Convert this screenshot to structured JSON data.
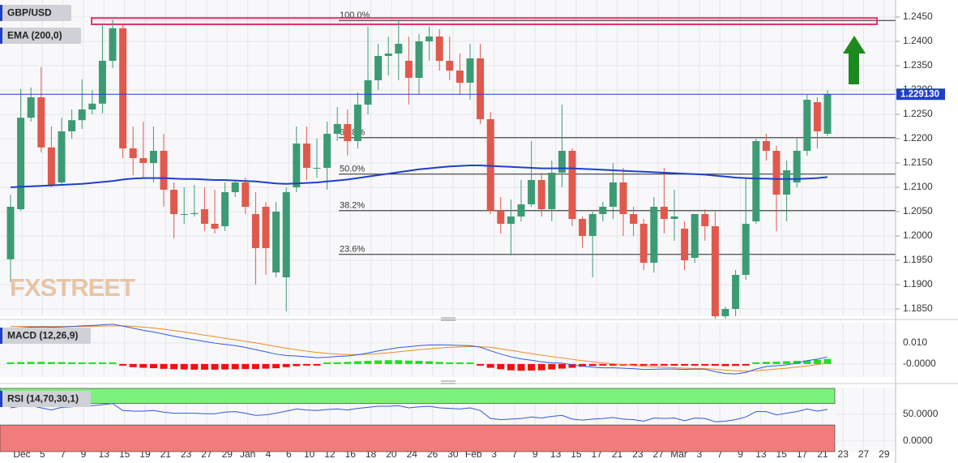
{
  "chart_data": {
    "type": "candlestick",
    "symbol": "GBP/USD",
    "watermark": "FXSTREET",
    "candle_colors": {
      "up": "#3c9b73",
      "down": "#e0594c"
    },
    "candles": {
      "open": [
        1.1952,
        1.2055,
        1.2243,
        1.2285,
        1.2182,
        1.211,
        1.2215,
        1.2238,
        1.226,
        1.2272,
        1.236,
        1.2427,
        1.218,
        1.216,
        1.215,
        1.2175,
        1.2095,
        1.2045,
        1.2045,
        1.2055,
        1.2025,
        1.202,
        1.209,
        1.211,
        1.2045,
        1.206,
        1.1925,
        1.1915,
        1.21,
        1.219,
        1.214,
        1.214,
        1.221,
        1.223,
        1.2195,
        1.227,
        1.232,
        1.237,
        1.2375,
        1.236,
        1.2325,
        1.24,
        1.241,
        1.236,
        1.234,
        1.2315,
        1.2365,
        1.224,
        1.2052,
        1.2025,
        1.204,
        1.2065,
        1.2115,
        1.2055,
        1.213,
        1.2175,
        1.2035,
        1.2,
        1.2045,
        1.206,
        1.211,
        1.2045,
        1.2025,
        1.1945,
        1.206,
        1.2035,
        1.2015,
        1.1955,
        1.2045,
        1.202,
        1.1835,
        1.185,
        1.192,
        1.203,
        1.2195,
        1.2175,
        1.2085,
        1.211,
        1.2175,
        1.2275,
        1.221
      ],
      "high": [
        1.2085,
        1.2302,
        1.2305,
        1.2347,
        1.2225,
        1.2243,
        1.226,
        1.2322,
        1.23,
        1.2435,
        1.2445,
        1.2435,
        1.2225,
        1.2235,
        1.2225,
        1.221,
        1.211,
        1.21,
        1.2105,
        1.21,
        1.2095,
        1.211,
        1.2115,
        1.212,
        1.209,
        1.207,
        1.207,
        1.21,
        1.2225,
        1.2225,
        1.22,
        1.2235,
        1.2265,
        1.226,
        1.2295,
        1.243,
        1.2395,
        1.241,
        1.2445,
        1.241,
        1.2415,
        1.243,
        1.2425,
        1.241,
        1.2375,
        1.2395,
        1.2395,
        1.2255,
        1.208,
        1.2075,
        1.2115,
        1.2195,
        1.213,
        1.2155,
        1.227,
        1.218,
        1.204,
        1.205,
        1.207,
        1.215,
        1.214,
        1.206,
        1.2035,
        1.208,
        1.214,
        1.2095,
        1.203,
        1.2045,
        1.2055,
        1.205,
        1.1855,
        1.193,
        1.212,
        1.22,
        1.221,
        1.2185,
        1.2155,
        1.22,
        1.229,
        1.2285,
        1.23
      ],
      "low": [
        1.1905,
        1.2052,
        1.2235,
        1.2172,
        1.21,
        1.2105,
        1.22,
        1.222,
        1.225,
        1.2252,
        1.2345,
        1.216,
        1.2125,
        1.212,
        1.211,
        1.206,
        1.1995,
        1.2025,
        1.204,
        1.201,
        1.2005,
        1.201,
        1.208,
        1.2045,
        1.19,
        1.192,
        1.1915,
        1.1845,
        1.209,
        1.2115,
        1.212,
        1.2095,
        1.2195,
        1.2165,
        1.218,
        1.225,
        1.23,
        1.233,
        1.232,
        1.227,
        1.229,
        1.236,
        1.234,
        1.232,
        1.229,
        1.228,
        1.223,
        1.2045,
        1.2005,
        1.196,
        1.203,
        1.206,
        1.204,
        1.203,
        1.21,
        1.202,
        1.1975,
        1.1915,
        1.203,
        1.2035,
        1.2,
        1.2,
        1.193,
        1.1925,
        1.2005,
        1.199,
        1.193,
        1.1945,
        1.199,
        1.183,
        1.183,
        1.1835,
        1.191,
        1.2025,
        1.2155,
        1.201,
        1.203,
        1.21,
        1.2165,
        1.218,
        1.2205
      ],
      "close": [
        1.206,
        1.2243,
        1.2285,
        1.2182,
        1.2105,
        1.2215,
        1.2238,
        1.226,
        1.2272,
        1.236,
        1.2427,
        1.218,
        1.216,
        1.215,
        1.2175,
        1.2095,
        1.2045,
        1.2045,
        1.2047,
        1.2025,
        1.2015,
        1.209,
        1.211,
        1.206,
        1.1975,
        1.1975,
        1.205,
        1.209,
        1.219,
        1.214,
        1.214,
        1.221,
        1.223,
        1.2195,
        1.227,
        1.232,
        1.237,
        1.2375,
        1.2395,
        1.2325,
        1.24,
        1.241,
        1.236,
        1.234,
        1.2315,
        1.2365,
        1.224,
        1.2052,
        1.2025,
        1.204,
        1.2065,
        1.2115,
        1.2055,
        1.213,
        1.2175,
        1.2035,
        1.2,
        1.2045,
        1.206,
        1.211,
        1.2045,
        1.2025,
        1.1945,
        1.206,
        1.2035,
        1.204,
        1.195,
        1.2045,
        1.202,
        1.1835,
        1.185,
        1.192,
        1.2025,
        1.2195,
        1.2175,
        1.2085,
        1.2135,
        1.2175,
        1.228,
        1.2215,
        1.2291
      ]
    },
    "ema": {
      "name": "EMA (200,0)",
      "color": "#1f3fc7",
      "values": [
        1.21,
        1.2101,
        1.2102,
        1.2103,
        1.2104,
        1.2105,
        1.2106,
        1.2107,
        1.2109,
        1.2111,
        1.2113,
        1.2116,
        1.2118,
        1.2119,
        1.2119,
        1.2119,
        1.2118,
        1.2117,
        1.2117,
        1.2116,
        1.2115,
        1.2115,
        1.2114,
        1.2113,
        1.2112,
        1.211,
        1.2108,
        1.2107,
        1.2108,
        1.2109,
        1.211,
        1.2112,
        1.2114,
        1.2116,
        1.2119,
        1.2122,
        1.2125,
        1.2128,
        1.2131,
        1.2134,
        1.2137,
        1.2139,
        1.2141,
        1.2143,
        1.2144,
        1.2145,
        1.2145,
        1.2144,
        1.2143,
        1.2142,
        1.2141,
        1.214,
        1.2139,
        1.2139,
        1.2139,
        1.2139,
        1.2138,
        1.2137,
        1.2136,
        1.2135,
        1.2134,
        1.2133,
        1.2132,
        1.2131,
        1.213,
        1.2129,
        1.2128,
        1.2127,
        1.2126,
        1.2124,
        1.2122,
        1.212,
        1.2119,
        1.2118,
        1.2118,
        1.2117,
        1.2117,
        1.2117,
        1.2118,
        1.2119,
        1.2121
      ]
    },
    "ylim": [
      1.1835,
      1.2485
    ],
    "yticks": [
      {
        "value": 1.245,
        "label": "1.2450"
      },
      {
        "value": 1.24,
        "label": "1.2400"
      },
      {
        "value": 1.235,
        "label": "1.2350"
      },
      {
        "value": 1.23,
        "label": "1.2300"
      },
      {
        "value": 1.225,
        "label": "1.2250"
      },
      {
        "value": 1.22,
        "label": "1.2200"
      },
      {
        "value": 1.215,
        "label": "1.2150"
      },
      {
        "value": 1.21,
        "label": "1.2100"
      },
      {
        "value": 1.205,
        "label": "1.2050"
      },
      {
        "value": 1.2,
        "label": "1.2000"
      },
      {
        "value": 1.195,
        "label": "1.1950"
      },
      {
        "value": 1.19,
        "label": "1.1900"
      },
      {
        "value": 1.185,
        "label": "1.1850"
      }
    ],
    "grid": true,
    "last_price": {
      "value": 1.22913,
      "label": "1.229130",
      "color": "#1f3fc7"
    },
    "fib_levels": [
      {
        "label": "100.0%",
        "price": 1.2443
      },
      {
        "label": "61.8%",
        "price": 1.2202
      },
      {
        "label": "50.0%",
        "price": 1.2127
      },
      {
        "label": "38.2%",
        "price": 1.2052
      },
      {
        "label": "23.6%",
        "price": 1.1962
      }
    ],
    "resistance_zone": {
      "low": 1.2435,
      "high": 1.2448,
      "color": "#e8336b"
    },
    "x_labels": [
      "Dec",
      "5",
      "7",
      "9",
      "13",
      "15",
      "19",
      "21",
      "23",
      "27",
      "29",
      "Jan",
      "4",
      "6",
      "10",
      "12",
      "16",
      "18",
      "20",
      "24",
      "26",
      "30",
      "Feb",
      "3",
      "7",
      "9",
      "13",
      "15",
      "17",
      "21",
      "23",
      "27",
      "Mar",
      "3",
      "7",
      "9",
      "13",
      "15",
      "17",
      "21",
      "23",
      "27",
      "29"
    ],
    "macd": {
      "title": "MACD (12,26,9)",
      "ylim": [
        -0.0062,
        0.0196
      ],
      "yticks": [
        {
          "value": 0.01,
          "label": "0.010"
        },
        {
          "value": 0,
          "label": "-0.0000"
        }
      ],
      "macd_color": "#2d5be3",
      "signal_color": "#f08a24",
      "up_color": "#22dd22",
      "down_color": "#ee1111",
      "macd": [
        0.017,
        0.0172,
        0.0175,
        0.0176,
        0.0175,
        0.0176,
        0.0178,
        0.0181,
        0.0183,
        0.0186,
        0.0189,
        0.018,
        0.017,
        0.016,
        0.0152,
        0.0142,
        0.0132,
        0.0123,
        0.0115,
        0.0107,
        0.0099,
        0.0093,
        0.0087,
        0.0079,
        0.0068,
        0.0058,
        0.0047,
        0.004,
        0.0038,
        0.0034,
        0.003,
        0.0032,
        0.0036,
        0.0038,
        0.0044,
        0.0052,
        0.0062,
        0.007,
        0.0078,
        0.0082,
        0.0087,
        0.009,
        0.0091,
        0.009,
        0.0088,
        0.0087,
        0.008,
        0.0063,
        0.0047,
        0.0034,
        0.0024,
        0.0018,
        0.001,
        0.0006,
        0.0004,
        -0.0004,
        -0.001,
        -0.0015,
        -0.0018,
        -0.0018,
        -0.002,
        -0.0022,
        -0.0026,
        -0.0025,
        -0.0024,
        -0.0024,
        -0.0026,
        -0.0024,
        -0.0025,
        -0.0036,
        -0.0045,
        -0.0047,
        -0.004,
        -0.0024,
        -0.0012,
        -0.0008,
        -0.0004,
        0.0004,
        0.0016,
        0.0023,
        0.0034
      ],
      "signal": [
        0.0178,
        0.0178,
        0.0178,
        0.0178,
        0.0178,
        0.0178,
        0.0178,
        0.0178,
        0.0179,
        0.018,
        0.0181,
        0.0181,
        0.0179,
        0.0175,
        0.0171,
        0.0165,
        0.0159,
        0.0152,
        0.0145,
        0.0137,
        0.013,
        0.0122,
        0.0115,
        0.0108,
        0.01,
        0.0092,
        0.0083,
        0.0075,
        0.0068,
        0.0061,
        0.0055,
        0.005,
        0.0047,
        0.0045,
        0.0045,
        0.0046,
        0.0049,
        0.0053,
        0.0058,
        0.0063,
        0.0068,
        0.0072,
        0.0076,
        0.0079,
        0.0081,
        0.0083,
        0.0082,
        0.0079,
        0.0072,
        0.0065,
        0.0057,
        0.0049,
        0.0042,
        0.0035,
        0.0029,
        0.0022,
        0.0016,
        0.001,
        0.0005,
        0.0001,
        -0.0003,
        -0.0007,
        -0.0011,
        -0.0014,
        -0.0016,
        -0.0018,
        -0.002,
        -0.0021,
        -0.0022,
        -0.0025,
        -0.0029,
        -0.0032,
        -0.0034,
        -0.0032,
        -0.0028,
        -0.0024,
        -0.002,
        -0.0015,
        -0.0009,
        -0.0003,
        0.0004
      ],
      "histogram": [
        0.0008,
        0.0009,
        0.001,
        0.001,
        0.0009,
        0.0009,
        0.0008,
        0.0007,
        0.0006,
        0.0006,
        0.0005,
        -0.0008,
        -0.0015,
        -0.0018,
        -0.002,
        -0.0023,
        -0.0025,
        -0.0026,
        -0.0027,
        -0.0027,
        -0.0027,
        -0.0026,
        -0.0025,
        -0.0024,
        -0.0024,
        -0.0022,
        -0.002,
        -0.0015,
        -0.001,
        -0.0006,
        -0.0003,
        0.0004,
        0.0008,
        0.001,
        0.0013,
        0.0015,
        0.0017,
        0.0018,
        0.0018,
        0.0016,
        0.0015,
        0.0013,
        0.001,
        0.0008,
        0.0005,
        0.0003,
        -0.0005,
        -0.0018,
        -0.0025,
        -0.003,
        -0.0032,
        -0.0031,
        -0.003,
        -0.0026,
        -0.0022,
        -0.0018,
        -0.0013,
        -0.0009,
        -0.0005,
        -0.0003,
        -0.0003,
        -0.0003,
        -0.0003,
        -0.0002,
        -0.0002,
        -0.0001,
        -0.0002,
        -0.0001,
        -0.0002,
        -0.0008,
        -0.001,
        -0.0009,
        -0.0002,
        0.0008,
        0.001,
        0.0011,
        0.0013,
        0.0015,
        0.0017,
        0.002,
        0.0024
      ]
    },
    "rsi": {
      "title": "RSI (14,70,30,1)",
      "ylim": [
        -20,
        100
      ],
      "yticks": [
        {
          "value": 50,
          "label": "50.0000"
        },
        {
          "value": 0,
          "label": "0.0000"
        }
      ],
      "overbought": 70,
      "oversold": 30,
      "color": "#3355dd",
      "overbought_color": "#7cf27c",
      "oversold_color": "#f27c7c",
      "values": [
        62,
        65,
        66,
        62,
        58,
        63,
        64,
        66,
        66,
        68,
        70,
        57,
        56,
        56,
        57,
        54,
        52,
        52,
        52,
        51,
        51,
        54,
        55,
        52,
        48,
        49,
        52,
        56,
        60,
        58,
        57,
        59,
        60,
        58,
        61,
        63,
        65,
        65,
        66,
        62,
        64,
        65,
        62,
        61,
        60,
        62,
        57,
        42,
        40,
        41,
        42,
        45,
        43,
        46,
        48,
        41,
        39,
        41,
        42,
        44,
        41,
        40,
        37,
        43,
        42,
        43,
        38,
        43,
        42,
        36,
        37,
        40,
        45,
        55,
        55,
        49,
        52,
        55,
        60,
        56,
        59
      ]
    }
  }
}
